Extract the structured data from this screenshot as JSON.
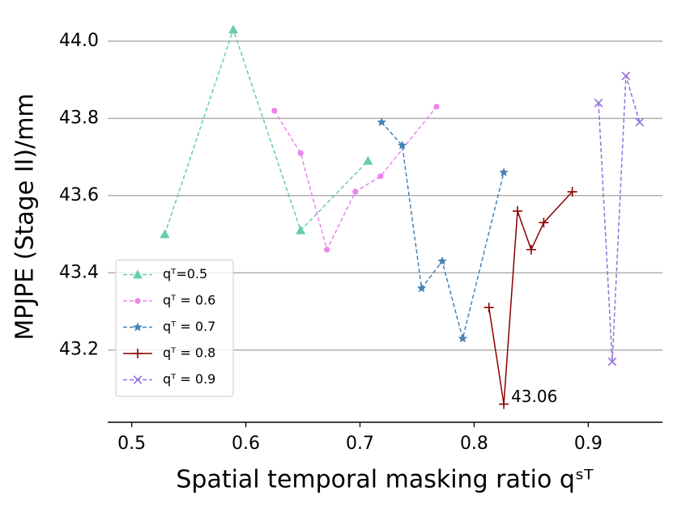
{
  "chart_data": {
    "type": "line",
    "xlabel": "Spatial temporal masking ratio qˢᵀ",
    "ylabel": "MPJPE (Stage II)/mm",
    "xlim": [
      0.479,
      0.965
    ],
    "ylim": [
      43.013,
      44.05
    ],
    "xticks": [
      0.5,
      0.6,
      0.7,
      0.8,
      0.9
    ],
    "yticks": [
      {
        "value": 43.2,
        "label": "43.2"
      },
      {
        "value": 43.4,
        "label": "43.4"
      },
      {
        "value": 43.6,
        "label": "43.6"
      },
      {
        "value": 43.8,
        "label": "43.8"
      },
      {
        "value": 44.0,
        "label": "44.0"
      }
    ],
    "grid": true,
    "legend": "lower left",
    "series": [
      {
        "name": "qᵀ=0.5",
        "color": "#66cdaa",
        "marker": "triangle",
        "linestyle": "dashed",
        "x": [
          0.529,
          0.589,
          0.648,
          0.707
        ],
        "values": [
          43.5,
          44.03,
          43.51,
          43.69
        ]
      },
      {
        "name": "qᵀ = 0.6",
        "color": "#ee82ee",
        "marker": "circle",
        "linestyle": "dashed",
        "x": [
          0.625,
          0.648,
          0.671,
          0.696,
          0.718,
          0.767
        ],
        "values": [
          43.82,
          43.71,
          43.46,
          43.61,
          43.65,
          43.83
        ]
      },
      {
        "name": "qᵀ = 0.7",
        "color": "#4682b4",
        "marker": "star",
        "linestyle": "dashed",
        "x": [
          0.719,
          0.737,
          0.754,
          0.772,
          0.79,
          0.826
        ],
        "values": [
          43.79,
          43.73,
          43.36,
          43.43,
          43.23,
          43.66
        ]
      },
      {
        "name": "qᵀ = 0.8",
        "color": "#8b0000",
        "marker": "plus",
        "linestyle": "solid",
        "x": [
          0.813,
          0.826,
          0.838,
          0.85,
          0.861,
          0.886
        ],
        "values": [
          43.31,
          43.06,
          43.56,
          43.46,
          43.53,
          43.61
        ],
        "value_labels": [
          null,
          "43.06",
          null,
          null,
          null,
          null
        ]
      },
      {
        "name": "qᵀ = 0.9",
        "color": "#9370db",
        "marker": "x",
        "linestyle": "dashed",
        "x": [
          0.909,
          0.921,
          0.933,
          0.945
        ],
        "values": [
          43.84,
          43.17,
          43.91,
          43.79
        ]
      }
    ]
  }
}
